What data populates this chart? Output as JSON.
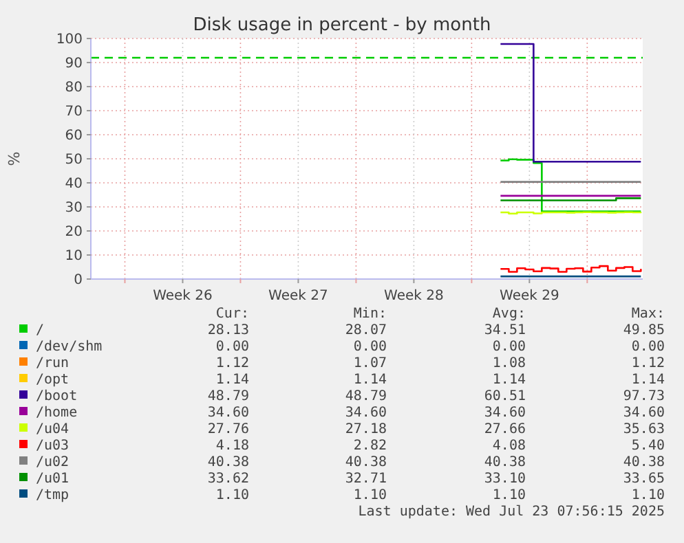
{
  "chart_data": {
    "type": "step",
    "title": "Disk usage in percent - by month",
    "ylabel": "%",
    "x": [
      "2025-07-15T18:00",
      "2025-07-16T06:00",
      "2025-07-16T18:00",
      "2025-07-17T06:00",
      "2025-07-17T18:00",
      "2025-07-18T06:00",
      "2025-07-18T18:00",
      "2025-07-19T06:00",
      "2025-07-19T18:00",
      "2025-07-20T06:00",
      "2025-07-20T18:00",
      "2025-07-21T06:00",
      "2025-07-21T18:00",
      "2025-07-22T06:00",
      "2025-07-22T18:00",
      "2025-07-23T06:00",
      "2025-07-23T18:00",
      "2025-07-24T06:00"
    ],
    "xlim": [
      "2025-06-20T22:30",
      "2025-07-24T08:40"
    ],
    "xticks": [
      {
        "value": "2025-06-23T00:00",
        "label": null
      },
      {
        "value": "2025-06-26T12:00",
        "label": "Week 26"
      },
      {
        "value": "2025-06-30T00:00",
        "label": null
      },
      {
        "value": "2025-07-03T12:00",
        "label": "Week 27"
      },
      {
        "value": "2025-07-07T00:00",
        "label": null
      },
      {
        "value": "2025-07-10T12:00",
        "label": "Week 28"
      },
      {
        "value": "2025-07-14T00:00",
        "label": null
      },
      {
        "value": "2025-07-17T12:00",
        "label": "Week 29"
      },
      {
        "value": "2025-07-21T00:00",
        "label": null
      }
    ],
    "ylim": [
      0,
      100
    ],
    "yticks": [
      0,
      10,
      20,
      30,
      40,
      50,
      60,
      70,
      80,
      90,
      100
    ],
    "grid": true,
    "legend": "bottom",
    "ref_lines": [
      {
        "axis": "y",
        "value": 92,
        "color": "#00cc00",
        "line_style": "dashed"
      }
    ],
    "series": [
      {
        "name": "/",
        "color": "#00cc00",
        "values": [
          49.3,
          49.8,
          49.6,
          49.6,
          48.2,
          28.1,
          28.1,
          28.1,
          28.1,
          28.1,
          28.1,
          28.1,
          28.1,
          28.1,
          28.1,
          28.1,
          28.1,
          28.1
        ]
      },
      {
        "name": "/dev/shm",
        "color": "#0066b3",
        "values": [
          null,
          null,
          null,
          null,
          null,
          null,
          null,
          null,
          null,
          null,
          null,
          null,
          null,
          null,
          null,
          null,
          null,
          null
        ]
      },
      {
        "name": "/run",
        "color": "#ff8000",
        "values": [
          null,
          null,
          null,
          null,
          null,
          null,
          null,
          null,
          null,
          null,
          null,
          null,
          null,
          null,
          null,
          null,
          null,
          null
        ]
      },
      {
        "name": "/opt",
        "color": "#ffcc00",
        "values": [
          null,
          null,
          null,
          null,
          null,
          null,
          null,
          null,
          null,
          null,
          null,
          null,
          null,
          null,
          null,
          null,
          null,
          null
        ]
      },
      {
        "name": "/boot",
        "color": "#330099",
        "values": [
          97.7,
          97.7,
          97.7,
          97.7,
          48.8,
          48.8,
          48.8,
          48.8,
          48.8,
          48.8,
          48.8,
          48.8,
          48.8,
          48.8,
          48.8,
          48.8,
          48.8,
          48.8
        ]
      },
      {
        "name": "/home",
        "color": "#990099",
        "values": [
          34.6,
          34.6,
          34.6,
          34.6,
          34.6,
          34.6,
          34.6,
          34.6,
          34.6,
          34.6,
          34.6,
          34.6,
          34.6,
          34.6,
          34.6,
          34.6,
          34.6,
          34.6
        ]
      },
      {
        "name": "/u04",
        "color": "#ccff00",
        "values": [
          27.7,
          27.2,
          27.7,
          27.7,
          27.3,
          27.7,
          27.7,
          27.7,
          27.6,
          27.7,
          27.8,
          27.7,
          27.7,
          27.6,
          27.7,
          27.8,
          27.7,
          27.8
        ]
      },
      {
        "name": "/u03",
        "color": "#ff0000",
        "values": [
          4.2,
          3,
          4.5,
          4,
          3.2,
          4.6,
          4.4,
          3,
          4.3,
          4.5,
          3.1,
          4.8,
          5.4,
          3.5,
          4.6,
          5,
          3.3,
          4.2
        ]
      },
      {
        "name": "/u02",
        "color": "#808080",
        "values": [
          40.4,
          40.4,
          40.4,
          40.4,
          40.4,
          40.4,
          40.4,
          40.4,
          40.4,
          40.4,
          40.4,
          40.4,
          40.4,
          40.4,
          40.4,
          40.4,
          40.4,
          40.4
        ]
      },
      {
        "name": "/u01",
        "color": "#008f00",
        "values": [
          32.7,
          32.7,
          32.7,
          32.7,
          32.7,
          32.7,
          32.7,
          32.7,
          32.7,
          32.7,
          32.7,
          32.7,
          32.7,
          32.7,
          33.6,
          33.6,
          33.6,
          33.6
        ]
      },
      {
        "name": "/tmp",
        "color": "#004d80",
        "values": [
          1.1,
          1.1,
          1.1,
          1.1,
          1.1,
          1.1,
          1.1,
          1.1,
          1.1,
          1.1,
          1.1,
          1.1,
          1.1,
          1.1,
          1.1,
          1.1,
          1.1,
          1.1
        ]
      }
    ],
    "annotations": [
      "Cur:",
      "Min:",
      "Avg:",
      "Max:",
      "28.13",
      "28.07",
      "34.51",
      "49.85",
      "0.00",
      "0.00",
      "0.00",
      "0.00",
      "1.12",
      "1.07",
      "1.08",
      "1.12",
      "1.14",
      "1.14",
      "1.14",
      "1.14",
      "48.79",
      "48.79",
      "60.51",
      "97.73",
      "34.60",
      "34.60",
      "34.60",
      "34.60",
      "27.76",
      "27.18",
      "27.66",
      "35.63",
      "4.18",
      "2.82",
      "4.08",
      "5.40",
      "40.38",
      "40.38",
      "40.38",
      "40.38",
      "33.62",
      "32.71",
      "33.10",
      "33.65",
      "1.10",
      "1.10",
      "1.10",
      "1.10",
      "Last update: Wed Jul 23 07:56:15 2025"
    ]
  }
}
